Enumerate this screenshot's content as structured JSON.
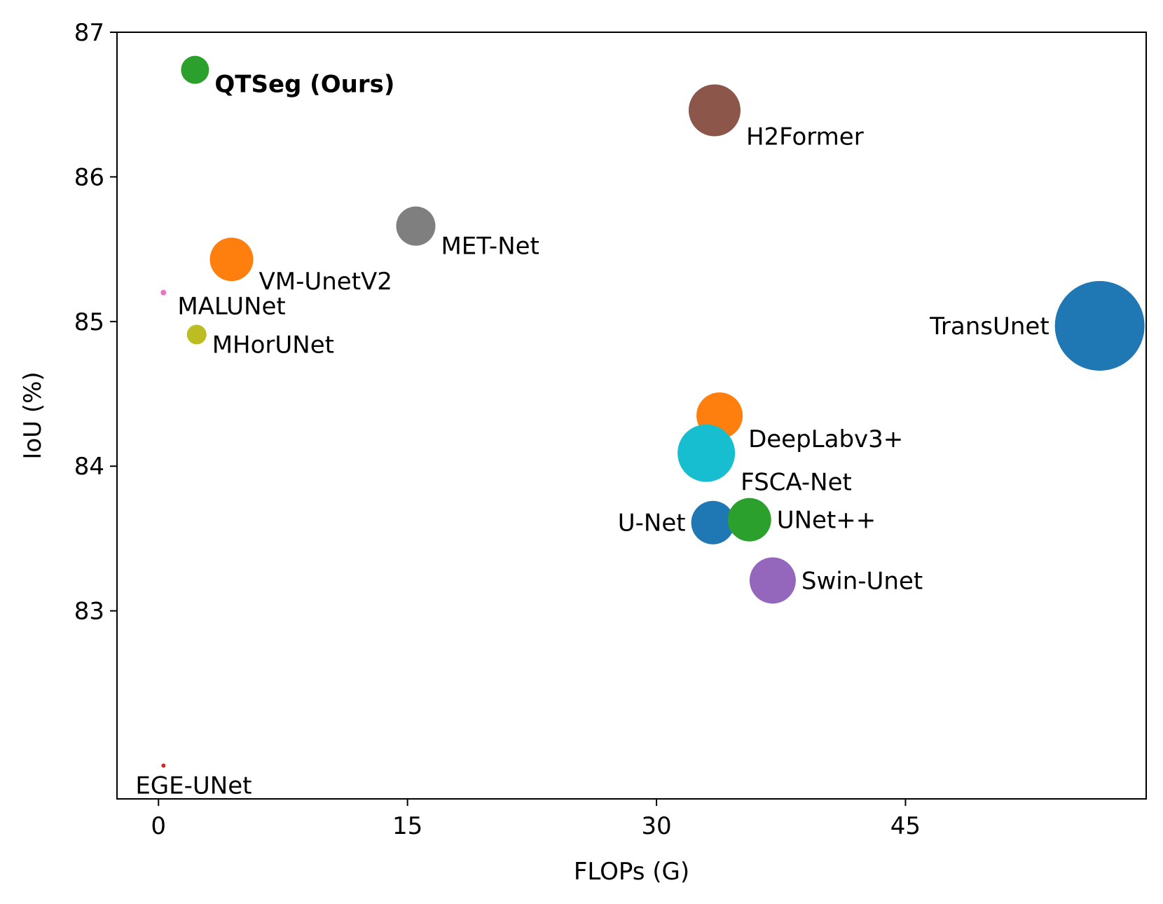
{
  "chart_data": {
    "type": "scatter",
    "title": "",
    "xlabel": "FLOPs (G)",
    "ylabel": "IoU (%)",
    "xlim": [
      -2.5,
      59.5
    ],
    "ylim": [
      81.7,
      87.0
    ],
    "xticks": [
      0,
      15,
      30,
      45
    ],
    "yticks": [
      83,
      84,
      85,
      86,
      87
    ],
    "grid": false,
    "legend": "none",
    "marker_size_encodes": "model size (relative)",
    "points": [
      {
        "label": "QTSeg (Ours)",
        "x": 2.2,
        "y": 86.74,
        "size": 20,
        "color": "#2ca02c",
        "bold": true,
        "label_pos": "below-right"
      },
      {
        "label": "H2Former",
        "x": 33.5,
        "y": 86.46,
        "size": 37,
        "color": "#8c564b",
        "bold": false,
        "label_pos": "below-right"
      },
      {
        "label": "MET-Net",
        "x": 15.5,
        "y": 85.66,
        "size": 28,
        "color": "#7f7f7f",
        "bold": false,
        "label_pos": "below-right"
      },
      {
        "label": "VM-UnetV2",
        "x": 4.4,
        "y": 85.43,
        "size": 31,
        "color": "#ff7f0e",
        "bold": false,
        "label_pos": "below-right"
      },
      {
        "label": "MALUNet",
        "x": 0.3,
        "y": 85.2,
        "size": 4,
        "color": "#e377c2",
        "bold": false,
        "label_pos": "below-right"
      },
      {
        "label": "MHorUNet",
        "x": 2.3,
        "y": 84.91,
        "size": 14,
        "color": "#bcbd22",
        "bold": false,
        "label_pos": "below-right"
      },
      {
        "label": "TransUnet",
        "x": 56.7,
        "y": 84.97,
        "size": 64,
        "color": "#1f77b4",
        "bold": false,
        "label_pos": "left"
      },
      {
        "label": "DeepLabv3+",
        "x": 33.8,
        "y": 84.35,
        "size": 33,
        "color": "#ff7f0e",
        "bold": false,
        "label_pos": "below-right"
      },
      {
        "label": "FSCA-Net",
        "x": 33.0,
        "y": 84.09,
        "size": 41,
        "color": "#17becf",
        "bold": false,
        "label_pos": "below-right"
      },
      {
        "label": "U-Net",
        "x": 33.4,
        "y": 83.61,
        "size": 31,
        "color": "#1f77b4",
        "bold": false,
        "label_pos": "left"
      },
      {
        "label": "UNet++",
        "x": 35.6,
        "y": 83.63,
        "size": 31,
        "color": "#2ca02c",
        "bold": false,
        "label_pos": "right"
      },
      {
        "label": "Swin-Unet",
        "x": 37.0,
        "y": 83.21,
        "size": 33,
        "color": "#9467bd",
        "bold": false,
        "label_pos": "right"
      },
      {
        "label": "EGE-UNet",
        "x": 0.3,
        "y": 81.93,
        "size": 3,
        "color": "#d62728",
        "bold": false,
        "label_pos": "below"
      }
    ]
  }
}
